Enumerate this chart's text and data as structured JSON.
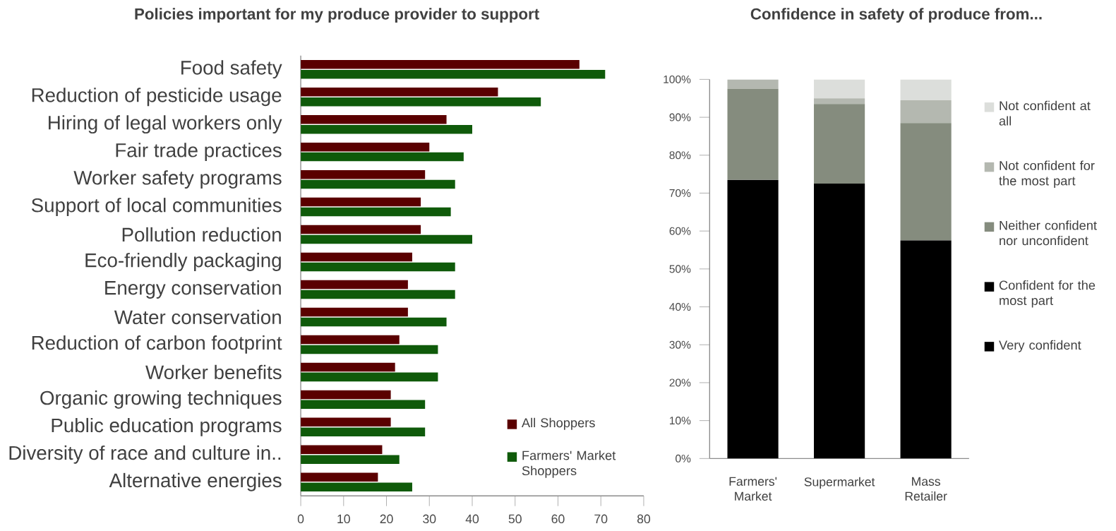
{
  "chart_data": [
    {
      "type": "bar",
      "orientation": "horizontal",
      "title": "Policies important for my produce provider to support",
      "categories": [
        "Food safety",
        "Reduction of pesticide usage",
        "Hiring of legal workers only",
        "Fair trade practices",
        "Worker safety programs",
        "Support of local communities",
        "Pollution reduction",
        "Eco-friendly packaging",
        "Energy conservation",
        "Water conservation",
        "Reduction of carbon footprint",
        "Worker benefits",
        "Organic growing techniques",
        "Public education programs",
        "Diversity of race and culture in..",
        "Alternative energies"
      ],
      "series": [
        {
          "name": "All Shoppers",
          "color": "#5a0000",
          "values": [
            65,
            46,
            34,
            30,
            29,
            28,
            28,
            26,
            25,
            25,
            23,
            22,
            21,
            21,
            19,
            18
          ]
        },
        {
          "name": "Farmers' Market Shoppers",
          "color": "#0f5a0a",
          "values": [
            71,
            56,
            40,
            38,
            36,
            35,
            40,
            36,
            36,
            34,
            32,
            32,
            29,
            29,
            23,
            26
          ]
        }
      ],
      "xlim": [
        0,
        80
      ],
      "xticks": [
        0,
        10,
        20,
        30,
        40,
        50,
        60,
        70,
        80
      ],
      "legend": "bottom right"
    },
    {
      "type": "bar",
      "stacked": true,
      "title": "Confidence in safety of produce from...",
      "categories": [
        "Farmers' Market",
        "Supermarket",
        "Mass Retailer"
      ],
      "series": [
        {
          "name": "Very confident",
          "color": "#000000",
          "values": [
            73.5,
            72.5,
            57.5
          ]
        },
        {
          "name": "Confident for the most part",
          "color": "#000000",
          "values": [
            0,
            0,
            0
          ]
        },
        {
          "name": "Neither confident nor unconfident",
          "color": "#858c7e",
          "values": [
            24,
            21,
            31
          ]
        },
        {
          "name": "Not confident for the most part",
          "color": "#b4b8b0",
          "values": [
            2.5,
            1.5,
            6
          ]
        },
        {
          "name": "Not confident at all",
          "color": "#dcdedb",
          "values": [
            0,
            5,
            5.5
          ]
        }
      ],
      "ylim": [
        0,
        100
      ],
      "yticks": [
        {
          "value": 0,
          "label": "0%"
        },
        {
          "value": 10,
          "label": "10%"
        },
        {
          "value": 20,
          "label": "20%"
        },
        {
          "value": 30,
          "label": "30%"
        },
        {
          "value": 40,
          "label": "40%"
        },
        {
          "value": 50,
          "label": "50%"
        },
        {
          "value": 60,
          "label": "60%"
        },
        {
          "value": 70,
          "label": "70%"
        },
        {
          "value": 80,
          "label": "80%"
        },
        {
          "value": 90,
          "label": "90%"
        },
        {
          "value": 100,
          "label": "100%"
        }
      ],
      "legend": "right"
    }
  ]
}
